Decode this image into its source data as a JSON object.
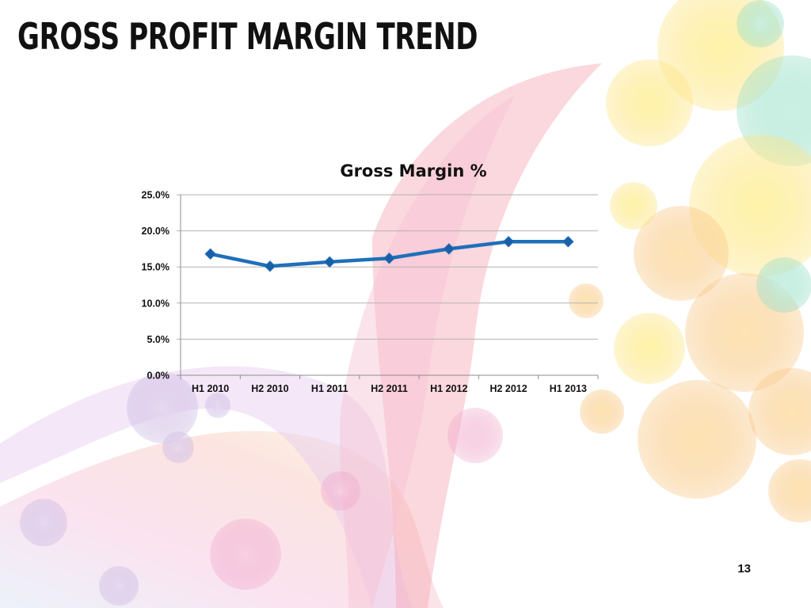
{
  "slide": {
    "title": "GROSS PROFIT MARGIN TREND",
    "page_number": "13"
  },
  "colors": {
    "series_line": "#1f6fba",
    "series_marker": "#1a5fa8",
    "gridline": "#b3b3b3",
    "axis": "#8c8c8c",
    "text": "#111111"
  },
  "chart_data": {
    "type": "line",
    "title": "Gross Margin %",
    "xlabel": "",
    "ylabel": "",
    "categories": [
      "H1 2010",
      "H2 2010",
      "H1 2011",
      "H2 2011",
      "H1 2012",
      "H2 2012",
      "H1 2013"
    ],
    "series": [
      {
        "values": [
          16.8,
          15.1,
          15.7,
          16.2,
          17.5,
          18.5,
          18.5
        ],
        "marker": "diamond"
      }
    ],
    "ylim": [
      0,
      25
    ],
    "yticks": [
      0,
      5,
      10,
      15,
      20,
      25
    ],
    "ytick_labels": [
      "0.0%",
      "5.0%",
      "10.0%",
      "15.0%",
      "20.0%",
      "25.0%"
    ],
    "grid": true,
    "legend": "none"
  }
}
